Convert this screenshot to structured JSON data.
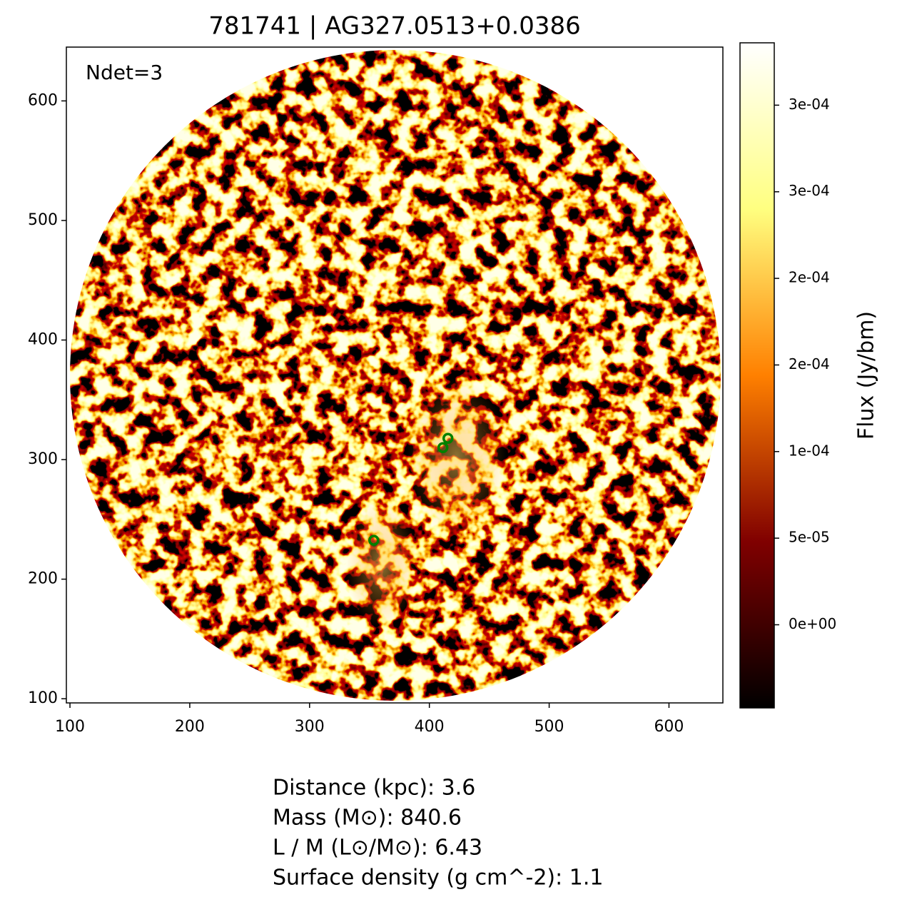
{
  "chart_data": {
    "type": "scatter",
    "title": "781741 | AG327.0513+0.0386",
    "annotation": "Ndet=3",
    "x": [
      411.3,
      415.5,
      353.6
    ],
    "values": [
      310.0,
      317.8,
      232.5
    ],
    "color": "#008000",
    "xlim": [
      97,
      645
    ],
    "ylim": [
      96.5,
      645
    ],
    "xticks": [
      100,
      200,
      300,
      400,
      500,
      600
    ],
    "yticks": [
      100,
      200,
      300,
      400,
      500,
      600
    ],
    "colorbar": {
      "label": "Flux (Jy/bm)",
      "clim": [
        -4.8e-05,
        0.000336
      ],
      "colormap": [
        "#000000",
        "#800000",
        "#ff8000",
        "#ffff80",
        "#ffffff"
      ],
      "ticks": [
        {
          "value": 0,
          "label": "0e+00"
        },
        {
          "value": 5e-05,
          "label": "5e-05"
        },
        {
          "value": 0.0001,
          "label": "1e-04"
        },
        {
          "value": 0.00015,
          "label": "2e-04"
        },
        {
          "value": 0.0002,
          "label": "2e-04"
        },
        {
          "value": 0.00025,
          "label": "3e-04"
        },
        {
          "value": 0.0003,
          "label": "3e-04"
        }
      ]
    },
    "info_lines": [
      "Distance (kpc): 3.6",
      "Mass (M⊙): 840.6",
      "L / M (L⊙/M⊙): 6.43",
      "Surface density (g cm^-2): 1.1"
    ]
  }
}
